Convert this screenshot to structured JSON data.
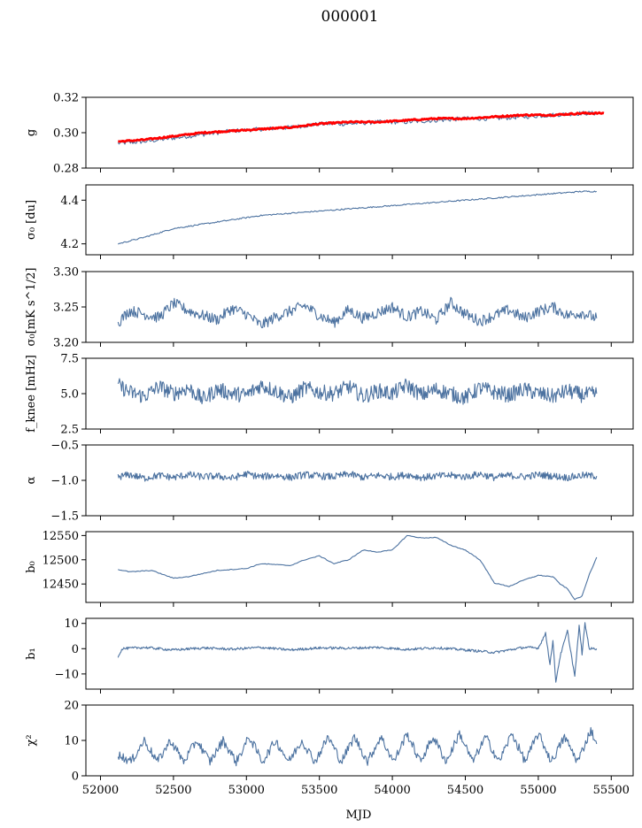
{
  "figure_title": "000001",
  "colors": {
    "series": "#4c72a0",
    "overlay": "#ff0000",
    "axes": "#000000"
  },
  "chart_data": [
    {
      "type": "line",
      "ylabel": "g",
      "ylim": [
        0.28,
        0.32
      ],
      "yticks": [
        {
          "value": 0.28,
          "label": "0.28"
        },
        {
          "value": 0.3,
          "label": "0.30"
        },
        {
          "value": 0.32,
          "label": "0.32"
        }
      ],
      "series": [
        {
          "color": "#4c72a0",
          "x": [
            52120,
            52300,
            52500,
            52700,
            52900,
            53100,
            53300,
            53500,
            53700,
            53900,
            54100,
            54300,
            54500,
            54700,
            54900,
            55100,
            55300,
            55400
          ],
          "values": [
            0.294,
            0.295,
            0.297,
            0.299,
            0.301,
            0.302,
            0.303,
            0.305,
            0.305,
            0.306,
            0.306,
            0.307,
            0.308,
            0.308,
            0.309,
            0.31,
            0.311,
            0.311
          ]
        },
        {
          "color": "#ff0000",
          "x": [
            52120,
            52300,
            52500,
            52700,
            52900,
            53100,
            53300,
            53500,
            53700,
            53900,
            54100,
            54300,
            54500,
            54700,
            54900,
            55100,
            55300,
            55450
          ],
          "values": [
            0.295,
            0.296,
            0.298,
            0.3,
            0.301,
            0.302,
            0.303,
            0.305,
            0.306,
            0.306,
            0.307,
            0.308,
            0.308,
            0.309,
            0.31,
            0.31,
            0.311,
            0.311
          ]
        }
      ]
    },
    {
      "type": "line",
      "ylabel": "σ₀ [du]",
      "ylim": [
        4.15,
        4.47
      ],
      "yticks": [
        {
          "value": 4.2,
          "label": "4.2"
        },
        {
          "value": 4.4,
          "label": "4.4"
        }
      ],
      "series": [
        {
          "color": "#4c72a0",
          "x": [
            52120,
            52300,
            52500,
            52700,
            52900,
            53100,
            53300,
            53500,
            53700,
            53900,
            54100,
            54300,
            54500,
            54700,
            54900,
            55100,
            55300,
            55400
          ],
          "values": [
            4.2,
            4.23,
            4.27,
            4.29,
            4.31,
            4.33,
            4.34,
            4.35,
            4.36,
            4.37,
            4.38,
            4.39,
            4.4,
            4.41,
            4.42,
            4.43,
            4.44,
            4.44
          ]
        }
      ]
    },
    {
      "type": "line",
      "ylabel": "σ₀[mK s^1/2]",
      "ylim": [
        3.2,
        3.3
      ],
      "yticks": [
        {
          "value": 3.2,
          "label": "3.20"
        },
        {
          "value": 3.25,
          "label": "3.25"
        },
        {
          "value": 3.3,
          "label": "3.30"
        }
      ],
      "series": [
        {
          "color": "#4c72a0",
          "x": [
            52120,
            52200,
            52300,
            52400,
            52500,
            52600,
            52700,
            52800,
            52900,
            53000,
            53100,
            53200,
            53300,
            53400,
            53500,
            53600,
            53700,
            53800,
            53900,
            54000,
            54100,
            54200,
            54300,
            54400,
            54500,
            54600,
            54700,
            54800,
            54900,
            55000,
            55100,
            55200,
            55300,
            55400
          ],
          "values": [
            3.228,
            3.245,
            3.24,
            3.235,
            3.255,
            3.245,
            3.238,
            3.232,
            3.248,
            3.24,
            3.224,
            3.236,
            3.244,
            3.252,
            3.238,
            3.228,
            3.246,
            3.234,
            3.242,
            3.25,
            3.236,
            3.244,
            3.232,
            3.256,
            3.24,
            3.23,
            3.238,
            3.246,
            3.234,
            3.244,
            3.25,
            3.238,
            3.242,
            3.234
          ]
        }
      ]
    },
    {
      "type": "line",
      "ylabel": "f_knee [mHz]",
      "ylim": [
        2.5,
        7.5
      ],
      "yticks": [
        {
          "value": 2.5,
          "label": "2.5"
        },
        {
          "value": 5.0,
          "label": "5.0"
        },
        {
          "value": 7.5,
          "label": "7.5"
        }
      ],
      "series": [
        {
          "color": "#4c72a0",
          "x": [
            52120,
            52200,
            52300,
            52400,
            52500,
            52600,
            52700,
            52800,
            52900,
            53000,
            53100,
            53200,
            53300,
            53400,
            53500,
            53600,
            53700,
            53800,
            53900,
            54000,
            54100,
            54200,
            54300,
            54400,
            54500,
            54600,
            54700,
            54800,
            54900,
            55000,
            55100,
            55200,
            55300,
            55400
          ],
          "values": [
            5.6,
            5.1,
            4.8,
            5.5,
            5.0,
            5.4,
            4.6,
            5.3,
            5.0,
            4.9,
            5.6,
            5.2,
            4.7,
            5.4,
            5.1,
            5.0,
            5.5,
            4.8,
            5.2,
            5.0,
            5.6,
            4.9,
            5.3,
            5.0,
            4.7,
            5.4,
            5.1,
            4.9,
            5.3,
            5.0,
            4.8,
            5.2,
            4.9,
            5.0
          ]
        }
      ]
    },
    {
      "type": "line",
      "ylabel": "α",
      "ylim": [
        -1.5,
        -0.5
      ],
      "yticks": [
        {
          "value": -1.5,
          "label": "−1.5"
        },
        {
          "value": -1.0,
          "label": "−1.0"
        },
        {
          "value": -0.5,
          "label": "−0.5"
        }
      ],
      "series": [
        {
          "color": "#4c72a0",
          "x": [
            52120,
            52200,
            52300,
            52400,
            52500,
            52600,
            52700,
            52800,
            52900,
            53000,
            53100,
            53200,
            53300,
            53400,
            53500,
            53600,
            53700,
            53800,
            53900,
            54000,
            54100,
            54200,
            54300,
            54400,
            54500,
            54600,
            54700,
            54800,
            54900,
            55000,
            55100,
            55200,
            55300,
            55400
          ],
          "values": [
            -0.95,
            -0.92,
            -0.97,
            -0.93,
            -0.96,
            -0.92,
            -0.95,
            -0.94,
            -0.97,
            -0.91,
            -0.95,
            -0.93,
            -0.96,
            -0.92,
            -0.94,
            -0.95,
            -0.91,
            -0.96,
            -0.93,
            -0.95,
            -0.92,
            -0.96,
            -0.94,
            -0.93,
            -0.95,
            -0.91,
            -0.96,
            -0.93,
            -0.95,
            -0.92,
            -0.94,
            -0.96,
            -0.93,
            -0.94
          ]
        }
      ]
    },
    {
      "type": "line",
      "ylabel": "b₀",
      "ylim": [
        12412,
        12558
      ],
      "yticks": [
        {
          "value": 12450,
          "label": "12450"
        },
        {
          "value": 12500,
          "label": "12500"
        },
        {
          "value": 12550,
          "label": "12550"
        }
      ],
      "series": [
        {
          "color": "#4c72a0",
          "x": [
            52120,
            52200,
            52350,
            52500,
            52600,
            52800,
            53000,
            53100,
            53300,
            53400,
            53500,
            53600,
            53700,
            53800,
            53900,
            54000,
            54100,
            54200,
            54300,
            54400,
            54500,
            54600,
            54700,
            54800,
            54900,
            55000,
            55100,
            55150,
            55200,
            55250,
            55300,
            55350,
            55400
          ],
          "values": [
            12480,
            12475,
            12478,
            12462,
            12465,
            12478,
            12482,
            12492,
            12488,
            12500,
            12508,
            12492,
            12500,
            12520,
            12516,
            12520,
            12550,
            12545,
            12546,
            12530,
            12520,
            12500,
            12452,
            12445,
            12458,
            12468,
            12465,
            12450,
            12440,
            12418,
            12425,
            12470,
            12505
          ]
        }
      ]
    },
    {
      "type": "line",
      "ylabel": "b₁",
      "ylim": [
        -16,
        12
      ],
      "yticks": [
        {
          "value": -10,
          "label": "−10"
        },
        {
          "value": 0,
          "label": "0"
        },
        {
          "value": 10,
          "label": "10"
        }
      ],
      "series": [
        {
          "color": "#4c72a0",
          "x": [
            52120,
            52150,
            52300,
            52500,
            52700,
            52900,
            53100,
            53300,
            53500,
            53700,
            53900,
            54100,
            54300,
            54500,
            54700,
            54900,
            55000,
            55050,
            55080,
            55100,
            55120,
            55150,
            55200,
            55250,
            55280,
            55300,
            55320,
            55350,
            55400
          ],
          "values": [
            -3,
            0,
            0.5,
            -0.5,
            0.3,
            -0.2,
            0.5,
            -0.5,
            0.3,
            0.2,
            0.5,
            -0.3,
            0.4,
            -0.5,
            -1.5,
            0.5,
            0.3,
            6,
            -6,
            3,
            -13,
            -3,
            7,
            -11,
            9,
            -2,
            10,
            0,
            0
          ]
        }
      ]
    },
    {
      "type": "line",
      "ylabel": "χ²",
      "xlabel": "MJD",
      "ylim": [
        0,
        20
      ],
      "xlim": [
        51900,
        55650
      ],
      "yticks": [
        {
          "value": 0,
          "label": "0"
        },
        {
          "value": 10,
          "label": "10"
        },
        {
          "value": 20,
          "label": "20"
        }
      ],
      "xticks": [
        {
          "value": 52000,
          "label": "52000"
        },
        {
          "value": 52500,
          "label": "52500"
        },
        {
          "value": 53000,
          "label": "53000"
        },
        {
          "value": 53500,
          "label": "53500"
        },
        {
          "value": 54000,
          "label": "54000"
        },
        {
          "value": 54500,
          "label": "54500"
        },
        {
          "value": 55000,
          "label": "55000"
        },
        {
          "value": 55500,
          "label": "55500"
        }
      ],
      "series": [
        {
          "color": "#4c72a0",
          "x": [
            52120,
            52210,
            52300,
            52390,
            52480,
            52570,
            52660,
            52750,
            52840,
            52930,
            53020,
            53110,
            53200,
            53290,
            53380,
            53470,
            53560,
            53650,
            53740,
            53830,
            53920,
            54010,
            54100,
            54190,
            54280,
            54370,
            54460,
            54550,
            54640,
            54730,
            54820,
            54910,
            55000,
            55090,
            55180,
            55270,
            55360,
            55400
          ],
          "values": [
            6,
            4,
            10,
            4,
            10,
            4,
            10,
            4,
            10,
            4,
            11,
            4,
            10,
            4,
            10,
            4,
            11,
            4,
            11,
            4,
            11,
            4,
            12,
            4,
            11,
            4,
            12,
            4,
            11,
            4,
            12,
            4,
            12,
            4,
            11,
            4,
            13,
            9
          ]
        }
      ]
    }
  ]
}
